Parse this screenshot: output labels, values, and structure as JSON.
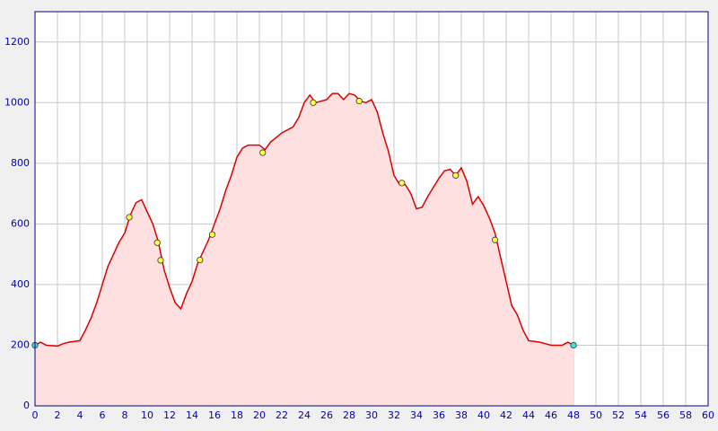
{
  "chart_data": {
    "type": "area",
    "x": [
      0,
      0.5,
      1,
      2,
      2.5,
      3,
      4,
      4.5,
      5,
      5.5,
      6,
      6.5,
      7,
      7.5,
      8,
      8.5,
      9,
      9.5,
      10,
      10.5,
      11,
      11.5,
      12,
      12.5,
      13,
      13.5,
      14,
      14.5,
      15,
      15.5,
      16,
      16.5,
      17,
      17.5,
      18,
      18.5,
      19,
      20,
      20.5,
      21,
      22,
      23,
      23.5,
      24,
      24.5,
      25,
      26,
      26.5,
      27,
      27.5,
      28,
      28.5,
      29,
      29.5,
      30,
      30.5,
      31,
      31.5,
      32,
      32.5,
      33,
      33.5,
      34,
      34.5,
      35,
      35.5,
      36,
      36.5,
      37,
      37.5,
      38,
      38.5,
      39,
      39.5,
      40,
      40.5,
      41,
      41.5,
      42,
      42.5,
      43,
      43.5,
      44,
      45,
      46,
      47,
      47.5,
      48
    ],
    "values": [
      200,
      210,
      200,
      197,
      205,
      210,
      215,
      250,
      290,
      340,
      400,
      460,
      500,
      540,
      570,
      630,
      670,
      680,
      640,
      600,
      540,
      450,
      390,
      340,
      320,
      370,
      410,
      470,
      510,
      550,
      600,
      650,
      710,
      760,
      820,
      850,
      860,
      860,
      845,
      870,
      900,
      920,
      950,
      1000,
      1025,
      1000,
      1010,
      1030,
      1030,
      1010,
      1030,
      1025,
      1005,
      1000,
      1010,
      970,
      900,
      840,
      760,
      730,
      730,
      700,
      650,
      655,
      690,
      720,
      750,
      775,
      780,
      760,
      785,
      740,
      665,
      690,
      660,
      620,
      570,
      490,
      410,
      330,
      300,
      250,
      215,
      210,
      200,
      200,
      210,
      200
    ],
    "color": "#dd0000",
    "fill_color": "#ffe0e0",
    "points": {
      "x": [
        0,
        8.4,
        10.9,
        11.2,
        14.7,
        15.8,
        20.3,
        24.8,
        28.9,
        32.7,
        37.5,
        41,
        48
      ],
      "values": [
        200,
        622,
        538,
        480,
        481,
        565,
        835,
        1000,
        1005,
        735,
        760,
        547,
        200
      ],
      "colors": [
        "#40e0e0",
        "#ffff40",
        "#ffff40",
        "#ffff40",
        "#ffff40",
        "#ffff40",
        "#ffff40",
        "#ffff40",
        "#ffff40",
        "#ffff40",
        "#ffff40",
        "#ffff40",
        "#40e0e0"
      ]
    },
    "xlim": [
      0,
      60
    ],
    "ylim": [
      0,
      1300
    ],
    "xticks": [
      0,
      2,
      4,
      6,
      8,
      10,
      12,
      14,
      16,
      18,
      20,
      22,
      24,
      26,
      28,
      30,
      32,
      34,
      36,
      38,
      40,
      42,
      44,
      46,
      48,
      50,
      52,
      54,
      56,
      58,
      60
    ],
    "yticks": [
      0,
      200,
      400,
      600,
      800,
      1000,
      1200
    ],
    "grid": true
  }
}
